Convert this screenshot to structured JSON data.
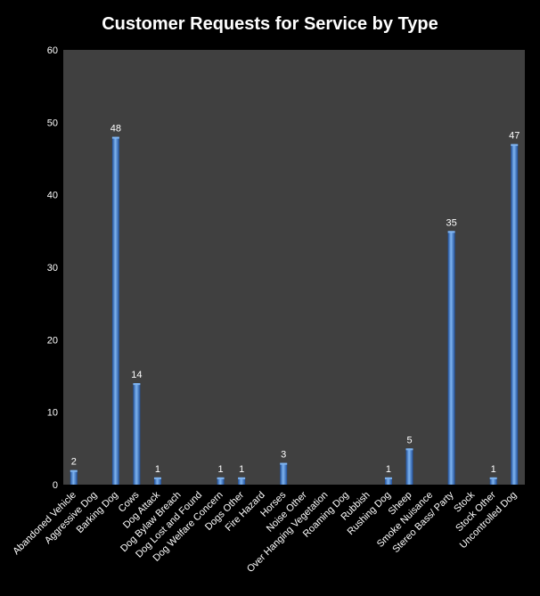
{
  "chart_data": {
    "type": "bar",
    "title": "Customer Requests for Service by Type",
    "xlabel": "",
    "ylabel": "",
    "ylim": [
      0,
      60
    ],
    "yticks": [
      0,
      10,
      20,
      30,
      40,
      50,
      60
    ],
    "grid": false,
    "legend": "none",
    "colors": {
      "background": "#000000",
      "plot_area": "#404040",
      "bar": "#3d7fd6",
      "bar_light": "#7fb4f0",
      "bar_dark": "#1f4f9a",
      "text": "#ffffff"
    },
    "categories": [
      "Abandoned Vehicle",
      "Aggressive Dog",
      "Barking Dog",
      "Cows",
      "Dog Attack",
      "Dog Bylaw Breach",
      "Dog Lost and Found",
      "Dog Welfare Concern",
      "Dogs Other",
      "Fire Hazard",
      "Horses",
      "Noise Other",
      "Over Hanging Vegetation",
      "Roaming Dog",
      "Rubbish",
      "Rushing Dog",
      "Sheep",
      "Smoke Nuisance",
      "Stereo Bass/ Party",
      "Stock",
      "Stock Other",
      "Uncontrolled Dog"
    ],
    "values": [
      2,
      null,
      48,
      14,
      1,
      null,
      null,
      1,
      1,
      null,
      3,
      null,
      null,
      null,
      null,
      1,
      5,
      null,
      35,
      null,
      1,
      47
    ]
  }
}
